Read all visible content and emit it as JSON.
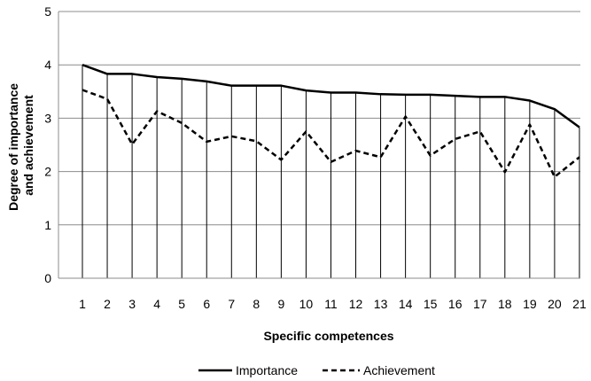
{
  "chart_data": {
    "type": "line",
    "xlabel": "Specific competences",
    "ylabel_lines": [
      "Degree of importance",
      "and achievement"
    ],
    "ylim": [
      0,
      5
    ],
    "yticks": [
      0,
      1,
      2,
      3,
      4,
      5
    ],
    "categories": [
      "1",
      "2",
      "3",
      "4",
      "5",
      "6",
      "7",
      "8",
      "9",
      "10",
      "11",
      "12",
      "13",
      "14",
      "15",
      "16",
      "17",
      "18",
      "19",
      "20",
      "21"
    ],
    "grid": "horizontal gridlines and vertical drop lines at each category",
    "legend_position": "bottom",
    "series": [
      {
        "name": "Importance",
        "style": "solid",
        "color": "#000000",
        "values": [
          4.0,
          3.83,
          3.83,
          3.77,
          3.74,
          3.69,
          3.61,
          3.61,
          3.61,
          3.52,
          3.48,
          3.48,
          3.45,
          3.44,
          3.44,
          3.42,
          3.4,
          3.4,
          3.33,
          3.17,
          2.83
        ]
      },
      {
        "name": "Achievement",
        "style": "dashed",
        "color": "#000000",
        "values": [
          3.53,
          3.36,
          2.51,
          3.13,
          2.91,
          2.56,
          2.66,
          2.57,
          2.22,
          2.75,
          2.18,
          2.39,
          2.27,
          3.03,
          2.3,
          2.61,
          2.75,
          1.99,
          2.88,
          1.9,
          2.27
        ]
      }
    ]
  }
}
